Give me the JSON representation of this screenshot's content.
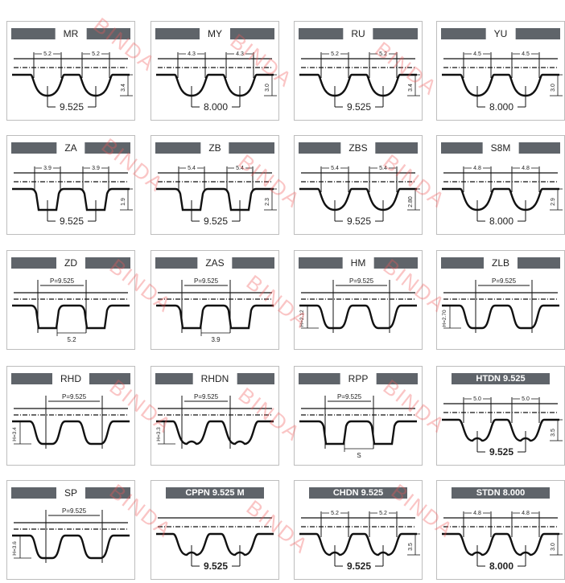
{
  "watermark": "BINDA",
  "colors": {
    "title_bar": "#5f646a",
    "line": "#111111",
    "watermark": "#f05a5a"
  },
  "profiles": [
    {
      "title": "MR",
      "style": "round",
      "dim": "5.2",
      "height": "3.4",
      "pitch": "9.525"
    },
    {
      "title": "MY",
      "style": "round",
      "dim": "4.3",
      "height": "3.0",
      "pitch": "8.000"
    },
    {
      "title": "RU",
      "style": "round",
      "dim": "5.2",
      "height": "3.4",
      "pitch": "9.525"
    },
    {
      "title": "YU",
      "style": "round",
      "dim": "4.5",
      "height": "3.0",
      "pitch": "8.000"
    },
    {
      "title": "ZA",
      "style": "trap",
      "dim": "3.9",
      "height": "1.9",
      "pitch": "9.525"
    },
    {
      "title": "ZB",
      "style": "trap",
      "dim": "5.4",
      "height": "2.3",
      "pitch": "9.525"
    },
    {
      "title": "ZBS",
      "style": "round",
      "dim": "5.4",
      "height": "2.80",
      "pitch": "9.525"
    },
    {
      "title": "S8M",
      "style": "round",
      "dim": "4.8",
      "height": "2.9",
      "pitch": "8.000"
    },
    {
      "title": "ZD",
      "style": "trap",
      "p_label": "P=9.525",
      "bottom_label": "5.2"
    },
    {
      "title": "ZAS",
      "style": "trap",
      "p_label": "P=9.525",
      "bottom_label": "3.9"
    },
    {
      "title": "HM",
      "style": "wide",
      "p_label": "P=9.525",
      "h_label": "H=2.12"
    },
    {
      "title": "ZLB",
      "style": "wide",
      "p_label": "P=9.525",
      "h_label": "H=2.70"
    },
    {
      "title": "RHD",
      "style": "wide",
      "p_label": "P=9.525",
      "h_label": "H=3.4"
    },
    {
      "title": "RHDN",
      "style": "double",
      "p_label": "P=9.525",
      "h_label": "H=3.3"
    },
    {
      "title": "RPP",
      "style": "trap",
      "p_label": "P=9.525",
      "bottom_label": "S"
    },
    {
      "title": "HTDN 9.525",
      "style": "double",
      "dark": true,
      "dim": "5.0",
      "height": "3.5",
      "pitch": "9.525"
    },
    {
      "title": "SP",
      "style": "wide",
      "p_label": "P=9.525",
      "h_label": "H=3.6"
    },
    {
      "title": "CPPN 9.525 M",
      "style": "double",
      "dark": true,
      "pitch": "9.525"
    },
    {
      "title": "CHDN 9.525",
      "style": "double",
      "dark": true,
      "dim": "5.2",
      "height": "3.5",
      "pitch": "9.525"
    },
    {
      "title": "STDN 8.000",
      "style": "double",
      "dark": true,
      "dim": "4.8",
      "height": "3.0",
      "pitch": "8.000"
    }
  ]
}
